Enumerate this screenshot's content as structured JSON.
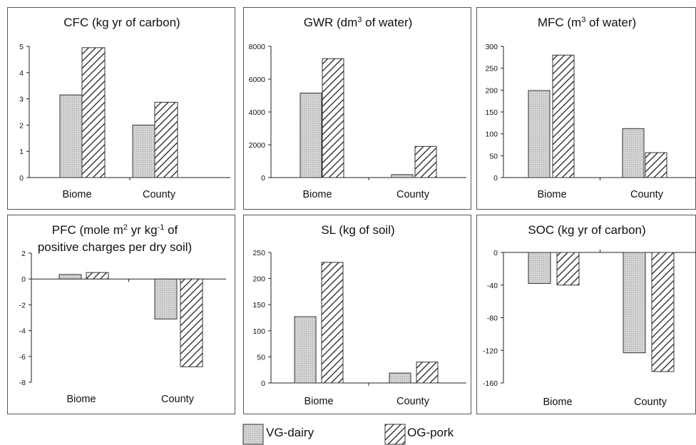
{
  "legend": {
    "vg_label": "VG-dairy",
    "og_label": "OG-pork"
  },
  "colors": {
    "vg_fill": "#c9c9c9",
    "og_hatch": "#222222",
    "frame": "#555555"
  },
  "chart_data": [
    {
      "type": "bar",
      "title_html": "CFC (kg yr of carbon)",
      "categories": [
        "Biome",
        "County"
      ],
      "series": [
        {
          "name": "VG-dairy",
          "values": [
            3.15,
            2.0
          ]
        },
        {
          "name": "OG-pork",
          "values": [
            4.95,
            2.87
          ]
        }
      ],
      "ylim": [
        0,
        5
      ],
      "yticks": [
        0,
        1,
        2,
        3,
        4,
        5
      ],
      "grid": false
    },
    {
      "type": "bar",
      "title_html": "GWR (dm<tspan dy='-6' font-size='11'>3</tspan><tspan dy='6'> of water)</tspan>",
      "categories": [
        "Biome",
        "County"
      ],
      "series": [
        {
          "name": "VG-dairy",
          "values": [
            5150,
            180
          ]
        },
        {
          "name": "OG-pork",
          "values": [
            7250,
            1900
          ]
        }
      ],
      "ylim": [
        0,
        8000
      ],
      "yticks": [
        0,
        2000,
        4000,
        6000,
        8000
      ],
      "grid": false
    },
    {
      "type": "bar",
      "title_html": "MFC (m<tspan dy='-6' font-size='11'>3</tspan><tspan dy='6'> of water)</tspan>",
      "categories": [
        "Biome",
        "County"
      ],
      "series": [
        {
          "name": "VG-dairy",
          "values": [
            199,
            112
          ]
        },
        {
          "name": "OG-pork",
          "values": [
            280,
            57
          ]
        }
      ],
      "ylim": [
        0,
        300
      ],
      "yticks": [
        0,
        50,
        100,
        150,
        200,
        250,
        300
      ],
      "grid": false
    },
    {
      "type": "bar",
      "title_html": "PFC (mole m<tspan dy='-6' font-size='11'>2</tspan><tspan dy='6'> yr kg</tspan><tspan dy='-6' font-size='11'>-1</tspan><tspan dy='6'> of</tspan>",
      "title2": "positive charges per dry soil)",
      "categories": [
        "Biome",
        "County"
      ],
      "series": [
        {
          "name": "VG-dairy",
          "values": [
            0.35,
            -3.1
          ]
        },
        {
          "name": "OG-pork",
          "values": [
            0.5,
            -6.8
          ]
        }
      ],
      "ylim": [
        -8,
        2
      ],
      "yticks": [
        -8,
        -6,
        -4,
        -2,
        0,
        2
      ],
      "grid": false
    },
    {
      "type": "bar",
      "title_html": "SL (kg of soil)",
      "categories": [
        "Biome",
        "County"
      ],
      "series": [
        {
          "name": "VG-dairy",
          "values": [
            127,
            19
          ]
        },
        {
          "name": "OG-pork",
          "values": [
            231,
            40
          ]
        }
      ],
      "ylim": [
        0,
        250
      ],
      "yticks": [
        0,
        50,
        100,
        150,
        200,
        250
      ],
      "grid": false
    },
    {
      "type": "bar",
      "title_html": "SOC (kg yr of carbon)",
      "categories": [
        "Biome",
        "County"
      ],
      "series": [
        {
          "name": "VG-dairy",
          "values": [
            -38,
            -123
          ]
        },
        {
          "name": "OG-pork",
          "values": [
            -40,
            -146
          ]
        }
      ],
      "ylim": [
        -160,
        0
      ],
      "yticks": [
        -160,
        -120,
        -80,
        -40,
        0
      ],
      "grid": false
    }
  ]
}
